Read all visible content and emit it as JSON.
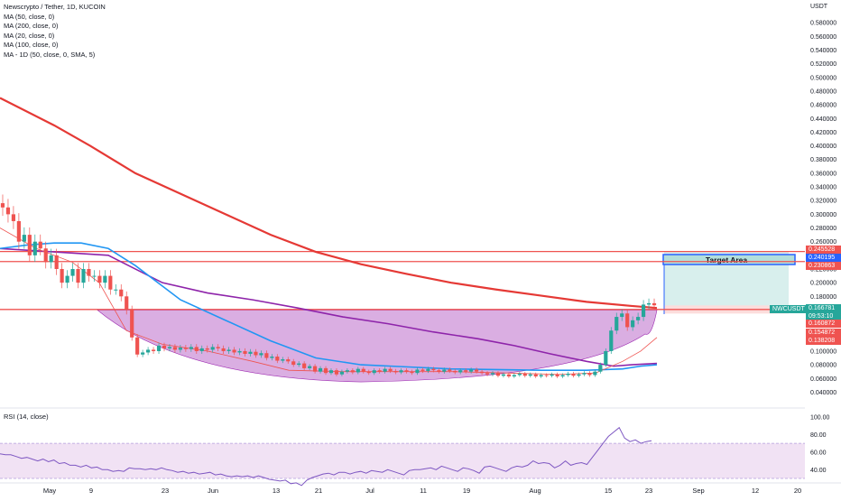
{
  "header": {
    "title": "Newscrypto / Tether, 1D, KUCOIN",
    "indicators": [
      "MA (50, close, 0)",
      "MA (200, close, 0)",
      "MA (20, close, 0)",
      "MA (100, close, 0)",
      "MA - 1D (50, close, 0, SMA, 5)"
    ]
  },
  "rsi": {
    "label": "RSI (14, close)",
    "ticks": [
      "100.00",
      "80.00",
      "60.00",
      "40.00"
    ],
    "values": [
      58,
      57,
      57,
      55,
      53,
      54,
      52,
      50,
      52,
      49,
      51,
      47,
      48,
      45,
      45,
      43,
      45,
      42,
      43,
      40,
      40,
      38,
      39,
      38,
      42,
      41,
      41,
      40,
      41,
      40,
      42,
      40,
      39,
      37,
      38,
      36,
      37,
      35,
      36,
      37,
      34,
      35,
      33,
      32,
      33,
      32,
      33,
      31,
      33,
      31,
      29,
      28,
      27,
      28,
      24,
      25,
      22,
      28,
      31,
      33,
      35,
      36,
      34,
      37,
      37,
      35,
      37,
      38,
      36,
      39,
      38,
      37,
      40,
      38,
      36,
      34,
      39,
      40,
      40,
      41,
      42,
      40,
      44,
      42,
      40,
      38,
      42,
      41,
      39,
      36,
      43,
      44,
      42,
      40,
      38,
      42,
      44,
      43,
      45,
      50,
      47,
      48,
      47,
      42,
      45,
      50,
      45,
      47,
      48,
      46,
      54,
      62,
      70,
      78,
      83,
      88,
      76,
      72,
      74,
      70,
      72,
      73
    ]
  },
  "price_axis": {
    "unit": "USDT",
    "ticks": [
      "0.580000",
      "0.560000",
      "0.540000",
      "0.520000",
      "0.500000",
      "0.480000",
      "0.460000",
      "0.440000",
      "0.420000",
      "0.400000",
      "0.380000",
      "0.360000",
      "0.340000",
      "0.320000",
      "0.300000",
      "0.280000",
      "0.260000",
      "0.240000",
      "0.220000",
      "0.200000",
      "0.180000",
      "0.160000",
      "0.140000",
      "0.120000",
      "0.100000",
      "0.080000",
      "0.060000",
      "0.040000"
    ]
  },
  "price_tags": [
    {
      "text": "0.245528",
      "color": "#ef5350"
    },
    {
      "text": "0.240195",
      "color": "#2962ff"
    },
    {
      "text": "0.230863",
      "color": "#ef5350"
    },
    {
      "text": "0.166781",
      "color": "#26a69a"
    },
    {
      "text": "09:53:10",
      "color": "#26a69a"
    },
    {
      "text": "0.160872",
      "color": "#ef5350"
    },
    {
      "text": "0.154872",
      "color": "#ef5350"
    },
    {
      "text": "0.138208",
      "color": "#ef5350"
    }
  ],
  "symbol_tag": "NWCUSDT",
  "target_label": "Target Area",
  "time_axis": [
    "May",
    "9",
    "23",
    "Jun",
    "13",
    "21",
    "Jul",
    "11",
    "19",
    "Aug",
    "15",
    "23",
    "Sep",
    "12",
    "20"
  ],
  "colors": {
    "up": "#26a69a",
    "down": "#ef5350",
    "ma200": "#e53935",
    "ma50": "#2196f3",
    "ma20": "#ef5350",
    "ma100": "#8e24aa",
    "cup": "#ce93d8",
    "rsi": "#7e57c2"
  },
  "chart_data": {
    "type": "candlestick",
    "ylim": [
      0.03,
      0.6
    ],
    "levels": [
      0.245528,
      0.230863,
      0.160872
    ],
    "target_area": {
      "top": 0.245,
      "bottom": 0.166781
    },
    "stop_area": {
      "top": 0.166781,
      "bottom": 0.154872
    },
    "closes": [
      0.31,
      0.3,
      0.29,
      0.26,
      0.27,
      0.24,
      0.26,
      0.25,
      0.23,
      0.24,
      0.22,
      0.2,
      0.21,
      0.22,
      0.2,
      0.22,
      0.21,
      0.21,
      0.2,
      0.21,
      0.19,
      0.19,
      0.18,
      0.16,
      0.12,
      0.095,
      0.098,
      0.102,
      0.1,
      0.108,
      0.104,
      0.106,
      0.102,
      0.105,
      0.103,
      0.106,
      0.1,
      0.104,
      0.102,
      0.106,
      0.104,
      0.1,
      0.102,
      0.098,
      0.1,
      0.096,
      0.099,
      0.094,
      0.097,
      0.09,
      0.092,
      0.086,
      0.088,
      0.085,
      0.08,
      0.082,
      0.075,
      0.078,
      0.07,
      0.075,
      0.068,
      0.072,
      0.066,
      0.07,
      0.072,
      0.069,
      0.074,
      0.07,
      0.068,
      0.072,
      0.07,
      0.074,
      0.071,
      0.069,
      0.072,
      0.07,
      0.068,
      0.073,
      0.071,
      0.074,
      0.072,
      0.07,
      0.073,
      0.071,
      0.069,
      0.072,
      0.07,
      0.073,
      0.07,
      0.068,
      0.066,
      0.068,
      0.064,
      0.066,
      0.063,
      0.065,
      0.067,
      0.064,
      0.066,
      0.063,
      0.065,
      0.064,
      0.066,
      0.063,
      0.065,
      0.067,
      0.064,
      0.066,
      0.068,
      0.065,
      0.07,
      0.08,
      0.1,
      0.13,
      0.15,
      0.155,
      0.135,
      0.145,
      0.15,
      0.168,
      0.17,
      0.167
    ],
    "ma200": [
      [
        0,
        0.47
      ],
      [
        60,
        0.43
      ],
      [
        100,
        0.4
      ],
      [
        150,
        0.36
      ],
      [
        200,
        0.33
      ],
      [
        250,
        0.3
      ],
      [
        300,
        0.27
      ],
      [
        350,
        0.245
      ],
      [
        400,
        0.227
      ],
      [
        450,
        0.213
      ],
      [
        500,
        0.2
      ],
      [
        550,
        0.19
      ],
      [
        600,
        0.181
      ],
      [
        650,
        0.172
      ],
      [
        700,
        0.166
      ],
      [
        728,
        0.163
      ]
    ],
    "ma50": [
      [
        0,
        0.25
      ],
      [
        30,
        0.255
      ],
      [
        60,
        0.258
      ],
      [
        90,
        0.258
      ],
      [
        120,
        0.25
      ],
      [
        150,
        0.225
      ],
      [
        200,
        0.175
      ],
      [
        250,
        0.145
      ],
      [
        300,
        0.115
      ],
      [
        350,
        0.09
      ],
      [
        400,
        0.08
      ],
      [
        450,
        0.077
      ],
      [
        500,
        0.074
      ],
      [
        550,
        0.073
      ],
      [
        600,
        0.072
      ],
      [
        650,
        0.072
      ],
      [
        690,
        0.074
      ],
      [
        710,
        0.078
      ],
      [
        728,
        0.08
      ]
    ],
    "ma100": [
      [
        0,
        0.25
      ],
      [
        60,
        0.245
      ],
      [
        120,
        0.24
      ],
      [
        180,
        0.2
      ],
      [
        230,
        0.185
      ],
      [
        280,
        0.175
      ],
      [
        330,
        0.163
      ],
      [
        380,
        0.15
      ],
      [
        430,
        0.14
      ],
      [
        480,
        0.128
      ],
      [
        530,
        0.118
      ],
      [
        570,
        0.108
      ],
      [
        610,
        0.096
      ],
      [
        650,
        0.085
      ],
      [
        680,
        0.078
      ],
      [
        700,
        0.08
      ],
      [
        728,
        0.082
      ]
    ],
    "ma20": [
      [
        0,
        0.28
      ],
      [
        40,
        0.25
      ],
      [
        80,
        0.23
      ],
      [
        110,
        0.2
      ],
      [
        140,
        0.13
      ],
      [
        180,
        0.11
      ],
      [
        230,
        0.1
      ],
      [
        280,
        0.085
      ],
      [
        320,
        0.072
      ],
      [
        380,
        0.07
      ],
      [
        440,
        0.07
      ],
      [
        500,
        0.07
      ],
      [
        560,
        0.068
      ],
      [
        620,
        0.066
      ],
      [
        660,
        0.068
      ],
      [
        690,
        0.085
      ],
      [
        710,
        0.1
      ],
      [
        728,
        0.12
      ]
    ]
  }
}
